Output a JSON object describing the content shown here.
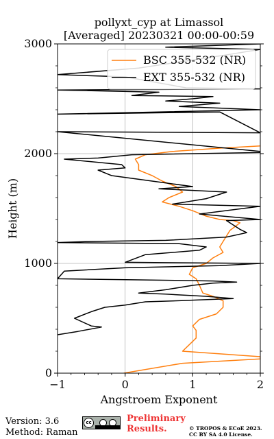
{
  "title": {
    "line1": "pollyxt_cyp at Limassol",
    "line2": "[Averaged] 20230321 00:00-00:59"
  },
  "footer": {
    "version": "Version: 3.6",
    "method": "Method: Raman",
    "preliminary_1": "Preliminary",
    "preliminary_2": "Results.",
    "copyright_1": "© TROPOS & ECoE 2023.",
    "copyright_2": "CC BY SA 4.0 License.",
    "license_badge": "cc by sa"
  },
  "colors": {
    "bsc": "#ff7f0e",
    "ext": "#000000",
    "grid": "#b0b0b0",
    "preliminary": "#ee3333"
  },
  "chart_data": {
    "type": "line",
    "orientation": "vertical-profile",
    "xlabel": "Angstroem Exponent",
    "ylabel": "Height (m)",
    "xlim": [
      -1,
      2
    ],
    "ylim": [
      0,
      3000
    ],
    "xticks": [
      "−1",
      "0",
      "1",
      "2"
    ],
    "xtick_values": [
      -1,
      0,
      1,
      2
    ],
    "yticks": [
      "0",
      "1000",
      "2000",
      "3000"
    ],
    "ytick_values": [
      0,
      1000,
      2000,
      3000
    ],
    "grid": true,
    "legend_position": "top-right",
    "series": [
      {
        "name": "BSC 355-532 (NR)",
        "color": "#ff7f0e",
        "points": [
          [
            -0.02,
            0
          ],
          [
            0.85,
            90
          ],
          [
            2.0,
            130
          ],
          [
            2.0,
            150
          ],
          [
            0.85,
            200
          ],
          [
            0.95,
            260
          ],
          [
            1.05,
            320
          ],
          [
            1.05,
            390
          ],
          [
            1.0,
            430
          ],
          [
            1.1,
            490
          ],
          [
            1.35,
            540
          ],
          [
            1.45,
            600
          ],
          [
            1.45,
            660
          ],
          [
            1.3,
            700
          ],
          [
            1.15,
            730
          ],
          [
            1.1,
            800
          ],
          [
            1.05,
            860
          ],
          [
            0.95,
            900
          ],
          [
            1.0,
            960
          ],
          [
            1.2,
            1000
          ],
          [
            1.3,
            1050
          ],
          [
            1.45,
            1100
          ],
          [
            1.4,
            1150
          ],
          [
            1.45,
            1200
          ],
          [
            1.5,
            1250
          ],
          [
            1.55,
            1300
          ],
          [
            1.7,
            1370
          ],
          [
            1.6,
            1390
          ],
          [
            1.4,
            1400
          ],
          [
            1.2,
            1430
          ],
          [
            1.0,
            1480
          ],
          [
            0.8,
            1520
          ],
          [
            0.55,
            1560
          ],
          [
            0.65,
            1600
          ],
          [
            0.85,
            1650
          ],
          [
            0.75,
            1700
          ],
          [
            0.55,
            1750
          ],
          [
            0.4,
            1800
          ],
          [
            0.2,
            1850
          ],
          [
            0.2,
            1900
          ],
          [
            0.15,
            1950
          ],
          [
            0.3,
            1990
          ],
          [
            0.7,
            2020
          ],
          [
            1.4,
            2050
          ],
          [
            2.0,
            2070
          ]
        ]
      },
      {
        "name": "EXT 355-532 (NR)",
        "color": "#000000",
        "points": [
          [
            -1.0,
            350
          ],
          [
            -0.7,
            380
          ],
          [
            -0.35,
            420
          ],
          [
            -0.5,
            430
          ],
          [
            -0.75,
            500
          ],
          [
            -0.5,
            560
          ],
          [
            -0.3,
            600
          ],
          [
            0.0,
            620
          ],
          [
            0.3,
            650
          ],
          [
            0.8,
            660
          ],
          [
            1.6,
            680
          ],
          [
            1.2,
            700
          ],
          [
            0.6,
            720
          ],
          [
            0.2,
            730
          ],
          [
            0.6,
            760
          ],
          [
            1.0,
            800
          ],
          [
            1.3,
            820
          ],
          [
            1.65,
            830
          ],
          [
            1.3,
            840
          ],
          [
            0.2,
            850
          ],
          [
            -1.0,
            860
          ],
          [
            -0.9,
            930
          ],
          [
            0.0,
            960
          ],
          [
            1.4,
            980
          ],
          [
            2.0,
            1000
          ],
          [
            0.0,
            1010
          ],
          [
            0.3,
            1080
          ],
          [
            1.1,
            1120
          ],
          [
            1.2,
            1150
          ],
          [
            0.8,
            1180
          ],
          [
            -1.0,
            1190
          ],
          [
            -0.5,
            1200
          ],
          [
            0.6,
            1210
          ],
          [
            1.5,
            1240
          ],
          [
            1.8,
            1280
          ],
          [
            1.7,
            1310
          ],
          [
            1.5,
            1390
          ],
          [
            2.0,
            1400
          ],
          [
            1.1,
            1450
          ],
          [
            2.0,
            1520
          ],
          [
            0.7,
            1540
          ],
          [
            1.2,
            1590
          ],
          [
            1.5,
            1650
          ],
          [
            0.5,
            1680
          ],
          [
            1.0,
            1700
          ],
          [
            0.4,
            1750
          ],
          [
            -0.2,
            1800
          ],
          [
            -0.4,
            1850
          ],
          [
            0.0,
            1870
          ],
          [
            -0.05,
            1900
          ],
          [
            -0.9,
            1950
          ],
          [
            -0.4,
            1960
          ],
          [
            0.1,
            1990
          ],
          [
            2.0,
            2010
          ],
          [
            2.0,
            2020
          ],
          [
            -1.0,
            2200
          ],
          [
            2.0,
            2190
          ],
          [
            1.4,
            2380
          ],
          [
            -1.0,
            2360
          ],
          [
            2.0,
            2400
          ],
          [
            0.8,
            2430
          ],
          [
            1.4,
            2460
          ],
          [
            0.6,
            2480
          ],
          [
            1.0,
            2500
          ],
          [
            1.3,
            2520
          ],
          [
            0.1,
            2530
          ],
          [
            0.5,
            2560
          ],
          [
            -1.0,
            2580
          ],
          [
            2.0,
            2590
          ],
          [
            0.9,
            2600
          ],
          [
            0.0,
            2700
          ],
          [
            -1.0,
            2720
          ],
          [
            0.2,
            2780
          ],
          [
            1.5,
            2900
          ],
          [
            2.0,
            2950
          ],
          [
            0.6,
            2970
          ],
          [
            2.0,
            3000
          ]
        ]
      }
    ]
  }
}
